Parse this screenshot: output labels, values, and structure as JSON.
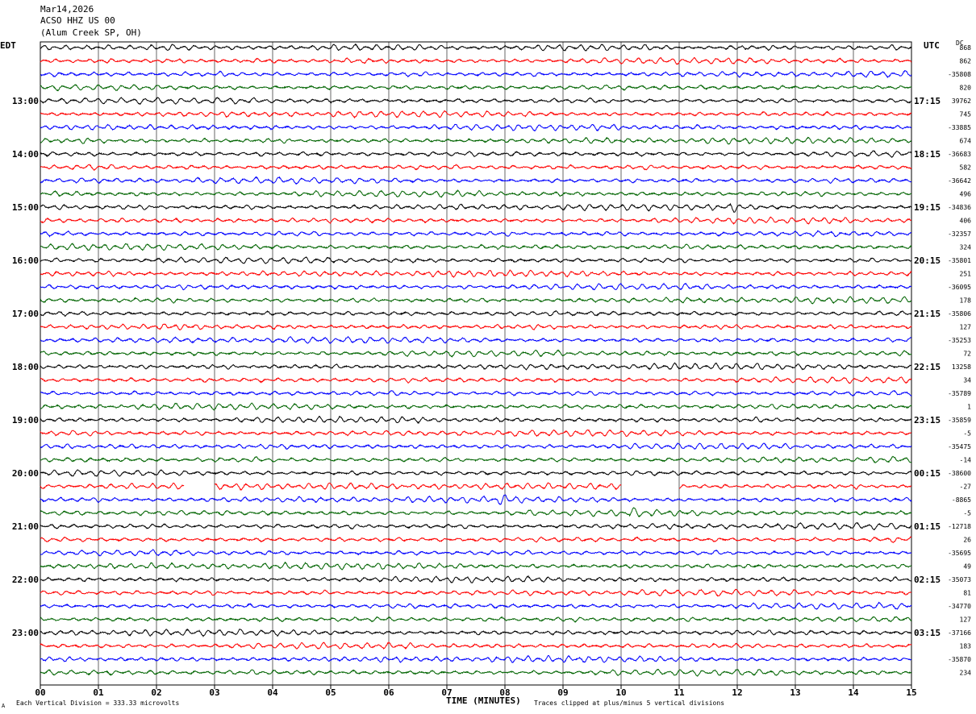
{
  "header": {
    "date": "Mar14,2026",
    "station": "ACSO HHZ US 00",
    "location": "(Alum Creek SP, OH)"
  },
  "labels": {
    "left_tz": "EDT",
    "right_tz": "UTC",
    "dc": "DC",
    "xlabel": "TIME (MINUTES)",
    "scale_note": "Each Vertical Division =  333.33 microvolts",
    "clip_note": "Traces clipped at plus/minus 5 vertical divisions",
    "corner_mark": "A"
  },
  "chart_data": {
    "type": "line",
    "trace_colors": [
      "#000000",
      "#ff0000",
      "#0000ff",
      "#006400"
    ],
    "x_ticks": [
      "00",
      "01",
      "02",
      "03",
      "04",
      "05",
      "06",
      "07",
      "08",
      "09",
      "10",
      "11",
      "12",
      "13",
      "14",
      "15"
    ],
    "xlim": [
      0,
      15
    ],
    "grid": true,
    "left_hours": [
      "13:00",
      "14:00",
      "15:00",
      "16:00",
      "17:00",
      "18:00",
      "19:00",
      "20:00",
      "21:00",
      "22:00",
      "23:00"
    ],
    "right_hours": [
      "17:15",
      "18:15",
      "19:15",
      "20:15",
      "21:15",
      "22:15",
      "23:15",
      "00:15",
      "01:15",
      "02:15",
      "03:15"
    ],
    "dc_offsets": [
      "868",
      "862",
      "-35808",
      "820",
      "39762",
      "745",
      "-33885",
      "674",
      "-36683",
      "582",
      "-36642",
      "496",
      "-34836",
      "406",
      "-32357",
      "324",
      "-35801",
      "251",
      "-36095",
      "178",
      "-35806",
      "127",
      "-35253",
      "72",
      "13258",
      "34",
      "-35789",
      "1",
      "-35859",
      "-5",
      "-35475",
      "-14",
      "-38600",
      "-27",
      "-8865",
      "-5",
      "-12718",
      "26",
      "-35695",
      "49",
      "-35073",
      "81",
      "-34770",
      "127",
      "-37166",
      "183",
      "-35870",
      "234"
    ],
    "traces_per_hour": 4,
    "minutes_per_trace": 15
  }
}
